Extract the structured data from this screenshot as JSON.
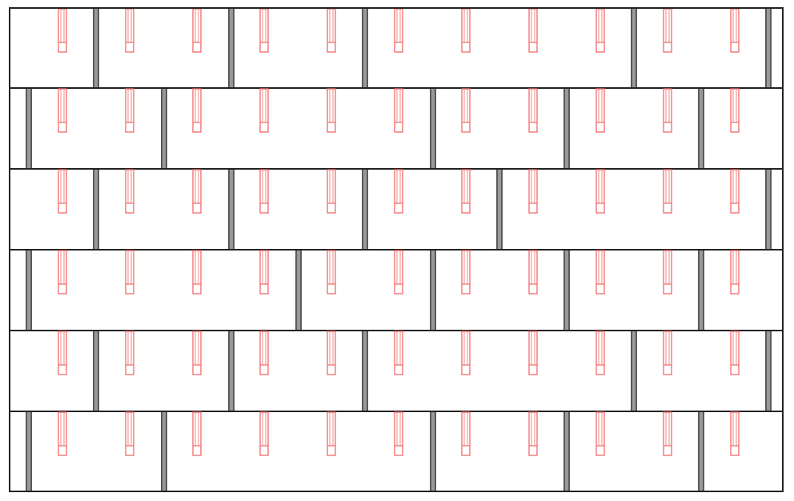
{
  "diagram": {
    "colors": {
      "background": "#ffffff",
      "panel_outline": "#222222",
      "joint": "#555555",
      "slot": "#f06a6a"
    },
    "icons": [
      "panel",
      "joint",
      "slot"
    ]
  }
}
